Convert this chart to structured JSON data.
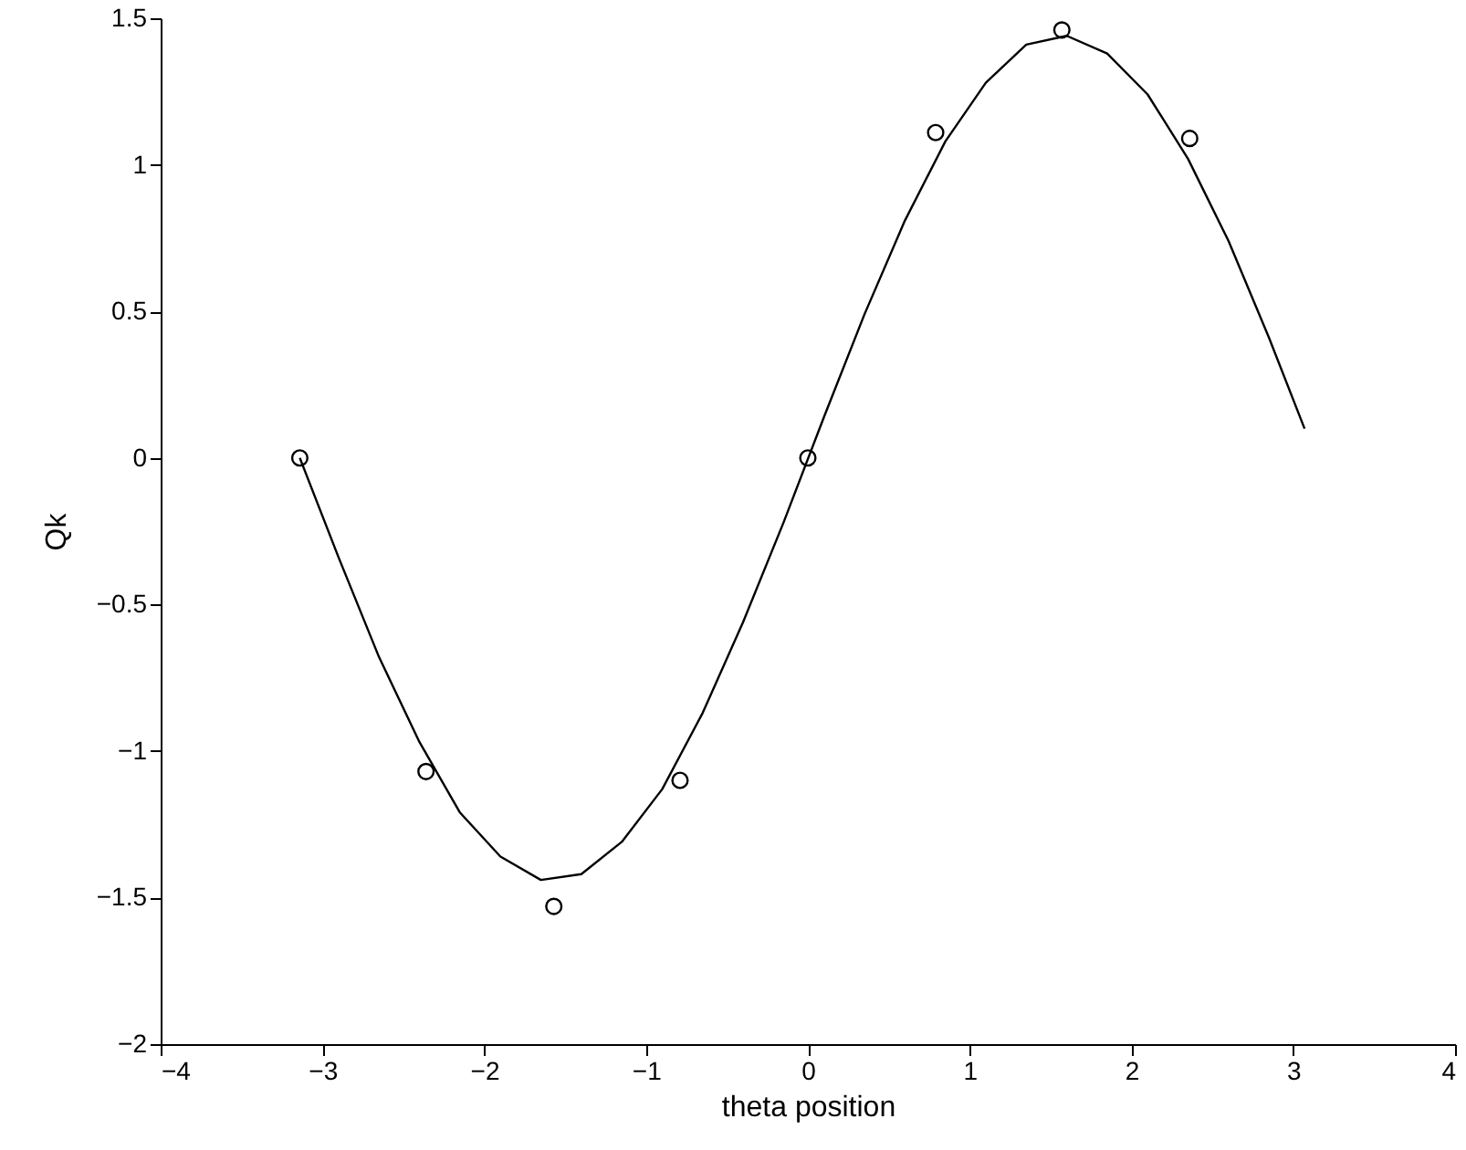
{
  "chart_data": {
    "type": "line",
    "xlabel": "theta position",
    "ylabel": "Qk",
    "xlim": [
      -4,
      4
    ],
    "xticks": [
      -4,
      -3,
      -2,
      -1,
      0,
      1,
      2,
      3,
      4
    ],
    "ylim": [
      -2,
      1.5
    ],
    "yticks": [
      -2,
      -1.5,
      -1,
      -0.5,
      0,
      0.5,
      1,
      1.5
    ],
    "grid": false,
    "series": [
      {
        "type": "scatter",
        "marker": "circle",
        "color": "#000000",
        "x": [
          -3.14,
          -2.36,
          -1.57,
          -0.79,
          0,
          0.79,
          1.57,
          2.36
        ],
        "values": [
          0.0,
          -1.07,
          -1.53,
          -1.1,
          0.0,
          1.11,
          1.46,
          1.09
        ]
      },
      {
        "line_style": "solid",
        "color": "#000000",
        "x": [
          -3.14,
          -2.9,
          -2.65,
          -2.4,
          -2.15,
          -1.9,
          -1.65,
          -1.4,
          -1.15,
          -0.9,
          -0.65,
          -0.4,
          -0.15,
          0.1,
          0.35,
          0.6,
          0.85,
          1.1,
          1.35,
          1.6,
          1.85,
          2.1,
          2.35,
          2.6,
          2.85,
          3.07
        ],
        "values": [
          0.0,
          -0.34,
          -0.68,
          -0.97,
          -1.21,
          -1.36,
          -1.44,
          -1.42,
          -1.31,
          -1.13,
          -0.87,
          -0.56,
          -0.22,
          0.14,
          0.49,
          0.81,
          1.08,
          1.28,
          1.41,
          1.44,
          1.38,
          1.24,
          1.02,
          0.74,
          0.41,
          0.1
        ]
      }
    ]
  }
}
